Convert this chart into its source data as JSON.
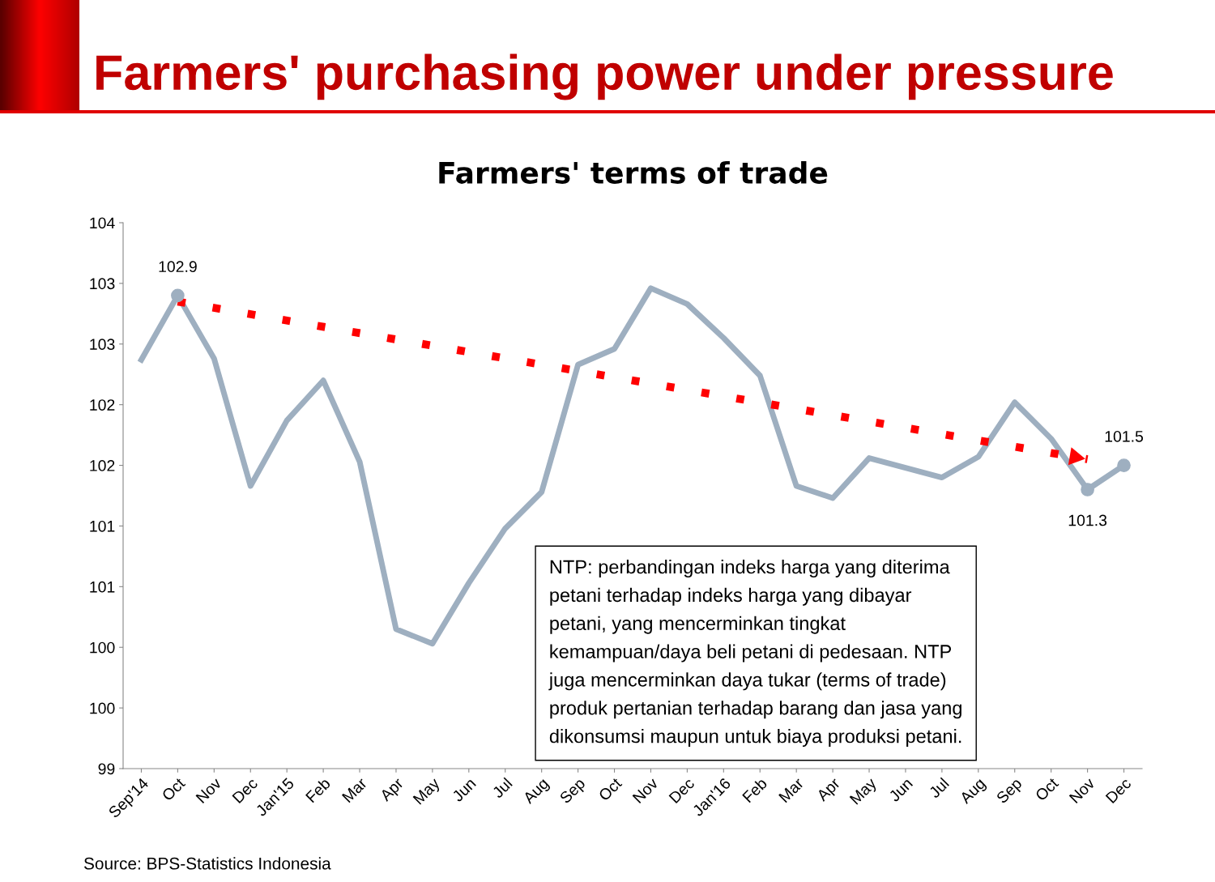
{
  "chart_data": {
    "type": "line",
    "title": "Farmers' terms of trade",
    "subtitle": "Farmers' purchasing power under pressure",
    "categories": [
      "Sep'14",
      "Oct",
      "Nov",
      "Dec",
      "Jan'15",
      "Feb",
      "Mar",
      "Apr",
      "May",
      "Jun",
      "Jul",
      "Aug",
      "Sep",
      "Oct",
      "Nov",
      "Dec",
      "Jan'16",
      "Feb",
      "Mar",
      "Apr",
      "May",
      "Jun",
      "Jul",
      "Aug",
      "Sep",
      "Oct",
      "Nov",
      "Dec"
    ],
    "series": [
      {
        "color": "#9eafc0",
        "line_style": "solid",
        "values": [
          102.37,
          102.9,
          102.38,
          101.33,
          101.87,
          102.2,
          101.53,
          100.15,
          100.03,
          100.53,
          100.98,
          101.28,
          102.33,
          102.46,
          102.96,
          102.83,
          102.55,
          102.24,
          101.33,
          101.23,
          101.56,
          101.48,
          101.4,
          101.57,
          102.02,
          101.72,
          101.3,
          101.5
        ],
        "value_labels": [
          null,
          "102.9",
          null,
          null,
          null,
          null,
          null,
          null,
          null,
          null,
          null,
          null,
          null,
          null,
          null,
          null,
          null,
          null,
          null,
          null,
          null,
          null,
          null,
          null,
          null,
          null,
          "101.3",
          "101.5"
        ]
      },
      {
        "type": "line",
        "color": "#ff0000",
        "line_style": "dotted",
        "values": [
          null,
          102.85,
          null,
          null,
          null,
          null,
          null,
          null,
          null,
          null,
          null,
          null,
          null,
          null,
          null,
          null,
          null,
          null,
          null,
          null,
          null,
          null,
          null,
          null,
          null,
          null,
          101.55,
          null
        ]
      }
    ],
    "ylim": [
      99,
      103.5
    ],
    "yticks": [
      99,
      {
        "value": 99.5,
        "label": "100"
      },
      100,
      {
        "value": 100.5,
        "label": "101"
      },
      101,
      {
        "value": 101.5,
        "label": "102"
      },
      102,
      {
        "value": 102.5,
        "label": "103"
      },
      103,
      {
        "value": 103.5,
        "label": "104"
      }
    ],
    "grid": false,
    "legend": false,
    "annotations": [
      "NTP: perbandingan indeks harga yang diterima\npetani terhadap indeks harga yang dibayar\npetani, yang mencerminkan tingkat\nkemampuan/daya beli petani di pedesaan. NTP\njuga mencerminkan daya tukar (terms of trade)\nproduk pertanian terhadap barang dan jasa yang\ndikonsumsi maupun untuk biaya produksi petani.",
      "Source: BPS-Statistics Indonesia"
    ]
  }
}
